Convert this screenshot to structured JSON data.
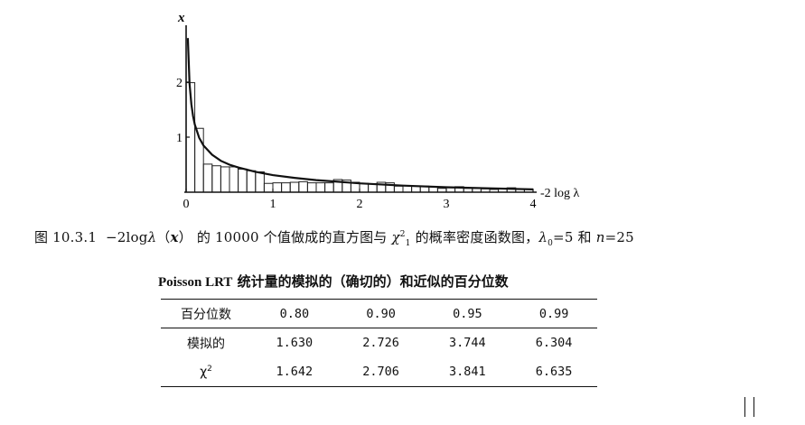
{
  "chart_data": {
    "type": "bar",
    "subtype": "histogram-with-density-curve",
    "ylabel": "x",
    "xlabel": "-2 log λ",
    "xlim": [
      0,
      4
    ],
    "ylim": [
      0,
      3
    ],
    "x_ticks": [
      "0",
      "1",
      "2",
      "3",
      "4"
    ],
    "y_ticks": [
      "1",
      "2"
    ],
    "bin_width": 0.1,
    "bin_starts": [
      0.0,
      0.1,
      0.2,
      0.3,
      0.4,
      0.5,
      0.6,
      0.7,
      0.8,
      0.9,
      1.0,
      1.1,
      1.2,
      1.3,
      1.4,
      1.5,
      1.6,
      1.7,
      1.8,
      1.9,
      2.0,
      2.1,
      2.2,
      2.3,
      2.4,
      2.5,
      2.6,
      2.7,
      2.8,
      2.9,
      3.0,
      3.1,
      3.2,
      3.3,
      3.4,
      3.5,
      3.6,
      3.7,
      3.8,
      3.9
    ],
    "series": [
      {
        "type": "histogram",
        "values": [
          1.99,
          1.16,
          0.51,
          0.48,
          0.46,
          0.46,
          0.42,
          0.39,
          0.37,
          0.16,
          0.17,
          0.17,
          0.18,
          0.19,
          0.17,
          0.17,
          0.17,
          0.23,
          0.22,
          0.18,
          0.16,
          0.15,
          0.18,
          0.17,
          0.11,
          0.12,
          0.11,
          0.11,
          0.1,
          0.07,
          0.08,
          0.1,
          0.07,
          0.07,
          0.06,
          0.05,
          0.06,
          0.08,
          0.05,
          0.05
        ]
      },
      {
        "type": "line",
        "x": [
          0.02,
          0.04,
          0.06,
          0.08,
          0.1,
          0.15,
          0.2,
          0.3,
          0.4,
          0.5,
          0.6,
          0.8,
          1.0,
          1.25,
          1.5,
          1.75,
          2.0,
          2.5,
          3.0,
          3.5,
          4.0
        ],
        "values": [
          2.8,
          1.97,
          1.6,
          1.38,
          1.23,
          0.99,
          0.85,
          0.68,
          0.57,
          0.5,
          0.45,
          0.37,
          0.31,
          0.26,
          0.22,
          0.19,
          0.16,
          0.12,
          0.09,
          0.07,
          0.05
        ]
      }
    ]
  },
  "caption": {
    "prefix": "图 10.3.1",
    "minus": "−2log",
    "lambda": "λ",
    "arg_open": "（",
    "arg": "x",
    "arg_close": "）",
    "middle": "的 10000 个值做成的直方图与",
    "chi": "χ",
    "chi_sup": "2",
    "chi_sub": "1",
    "tail1": "的概率密度函数图，",
    "lambda0": "λ",
    "lambda0_sub": "0",
    "tail2": "=5 和",
    "n": "n",
    "tail3": "=25"
  },
  "table": {
    "title_latin": "Poisson LRT",
    "title_rest": "统计量的模拟的（确切的）和近似的百分位数",
    "header_label": "百分位数",
    "columns": [
      "0.80",
      "0.90",
      "0.95",
      "0.99"
    ],
    "rows": [
      {
        "label": "模拟的",
        "label_sup": "",
        "values": [
          "1.630",
          "2.726",
          "3.744",
          "6.304"
        ]
      },
      {
        "label": "χ",
        "label_sup": "2",
        "values": [
          "1.642",
          "2.706",
          "3.841",
          "6.635"
        ]
      }
    ]
  }
}
